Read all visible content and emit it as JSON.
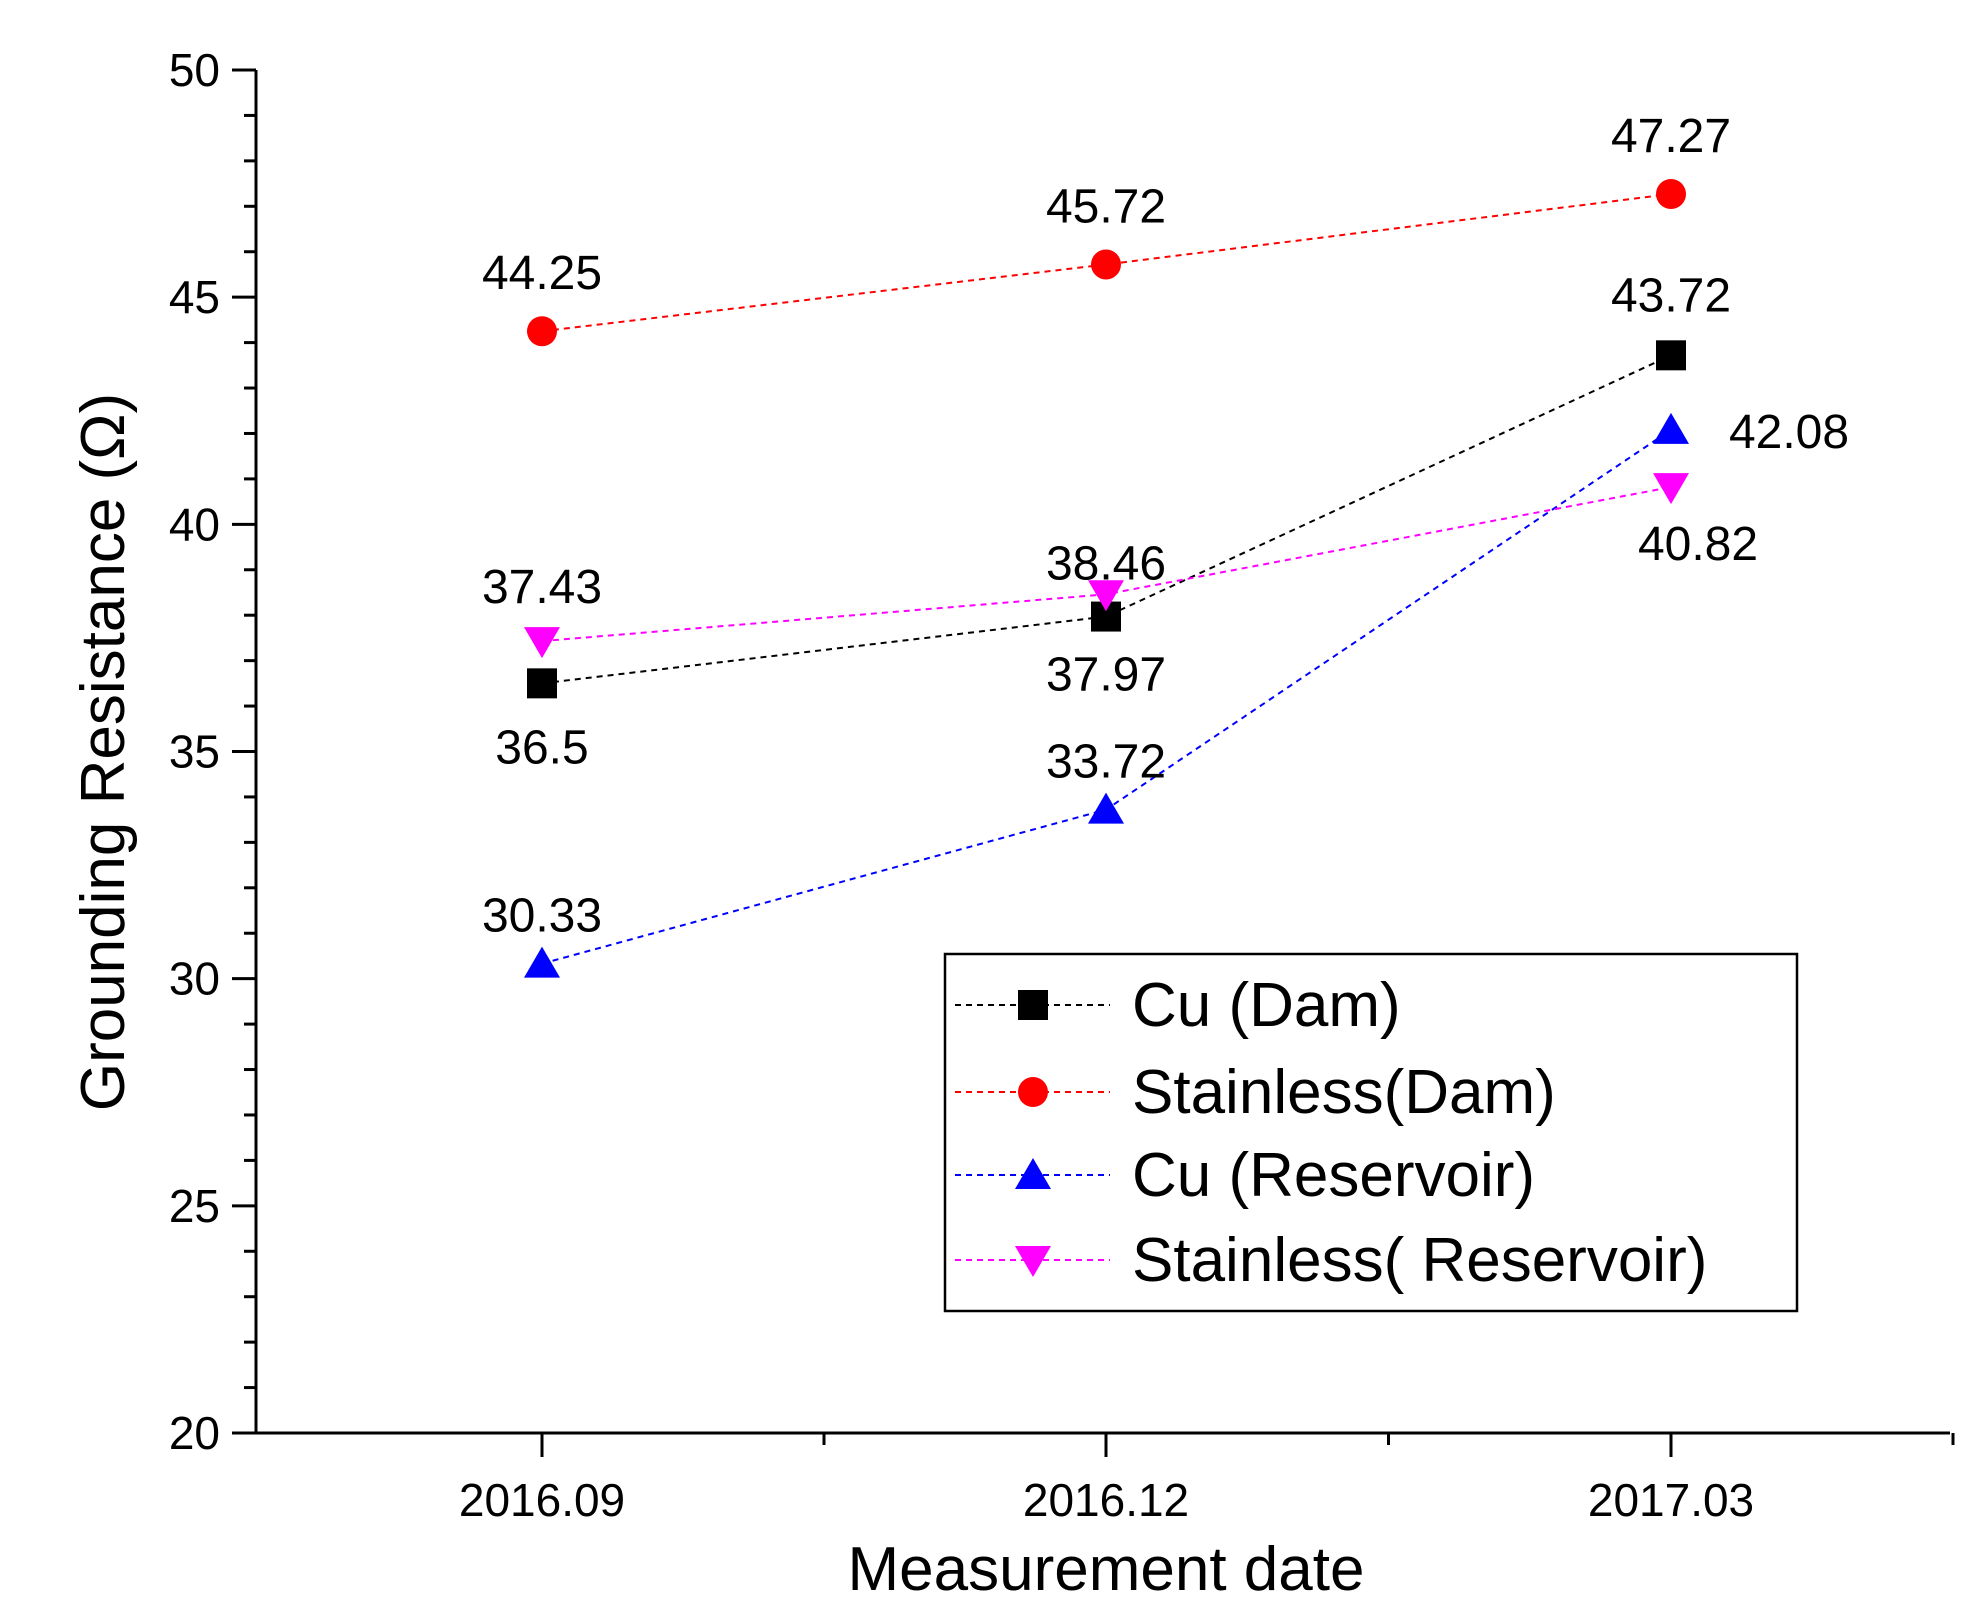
{
  "chart_data": {
    "type": "line",
    "title": "",
    "xlabel": "Measurement date",
    "ylabel": "Grounding Resistance (Ω)",
    "categories": [
      "2016.09",
      "2016.12",
      "2017.03"
    ],
    "ylim": [
      20,
      50
    ],
    "yticks": [
      "20",
      "25",
      "30",
      "35",
      "40",
      "45",
      "50"
    ],
    "grid": false,
    "legend_position": "bottom-right",
    "series": [
      {
        "name": "Cu (Dam)",
        "color": "#000000",
        "marker": "square",
        "values": [
          36.5,
          37.97,
          43.72
        ],
        "labels": [
          "36.5",
          "37.97",
          "43.72"
        ]
      },
      {
        "name": "Stainless(Dam)",
        "color": "#ff0000",
        "marker": "circle",
        "values": [
          44.25,
          45.72,
          47.27
        ],
        "labels": [
          "44.25",
          "45.72",
          "47.27"
        ]
      },
      {
        "name": "Cu (Reservoir)",
        "color": "#0000ff",
        "marker": "triangle-up",
        "values": [
          30.33,
          33.72,
          42.08
        ],
        "labels": [
          "30.33",
          "33.72",
          "42.08"
        ]
      },
      {
        "name": "Stainless( Reservoir)",
        "color": "#ff00ff",
        "marker": "triangle-down",
        "values": [
          37.43,
          38.46,
          40.82
        ],
        "labels": [
          "37.43",
          "38.46",
          "40.82"
        ]
      }
    ]
  }
}
